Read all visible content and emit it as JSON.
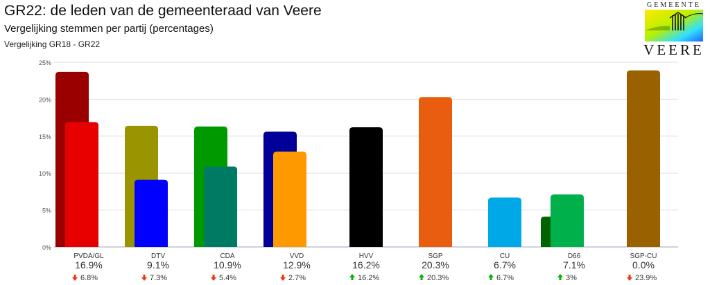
{
  "header": {
    "title": "GR22: de leden van de gemeenteraad van Veere",
    "subtitle": "Vergelijking stemmen per partij (percentages)",
    "comparison": "Vergelijking GR18 - GR22"
  },
  "logo": {
    "top_text": "GEMEENTE",
    "bottom_text": "VEERE"
  },
  "chart_data": {
    "type": "bar",
    "y_ticks": [
      "25%",
      "20%",
      "15%",
      "10%",
      "5%",
      "0%"
    ],
    "ylim": [
      0,
      25
    ],
    "grid": true,
    "categories": [
      "PVDA/GL",
      "DTV",
      "CDA",
      "VVD",
      "HVV",
      "SGP",
      "CU",
      "D66",
      "SGP-CU"
    ],
    "series": [
      {
        "values": [
          23.7,
          16.4,
          16.3,
          15.6,
          null,
          null,
          null,
          4.1,
          23.9
        ],
        "colors": [
          "#9b0000",
          "#999400",
          "#009900",
          "#000099",
          null,
          null,
          null,
          "#006300",
          "#996100"
        ]
      },
      {
        "values": [
          16.9,
          9.1,
          10.9,
          12.9,
          16.2,
          20.3,
          6.7,
          7.1,
          0.0
        ],
        "colors": [
          "#e60000",
          "#0000ff",
          "#007b63",
          "#ff9900",
          "#000000",
          "#e85d10",
          "#00a8e8",
          "#00b04a",
          "#996100"
        ]
      }
    ],
    "value_labels": [
      "16.9%",
      "9.1%",
      "10.9%",
      "12.9%",
      "16.2%",
      "20.3%",
      "6.7%",
      "7.1%",
      "0.0%"
    ],
    "changes": [
      {
        "direction": "down",
        "text": "6.8%"
      },
      {
        "direction": "down",
        "text": "7.3%"
      },
      {
        "direction": "down",
        "text": "5.4%"
      },
      {
        "direction": "down",
        "text": "2.7%"
      },
      {
        "direction": "up",
        "text": "16.2%"
      },
      {
        "direction": "up",
        "text": "20.3%"
      },
      {
        "direction": "up",
        "text": "6.7%"
      },
      {
        "direction": "up",
        "text": "3%"
      },
      {
        "direction": "down",
        "text": "23.9%"
      }
    ],
    "arrow_colors": {
      "up": "#00b400",
      "down": "#e8380d"
    }
  }
}
